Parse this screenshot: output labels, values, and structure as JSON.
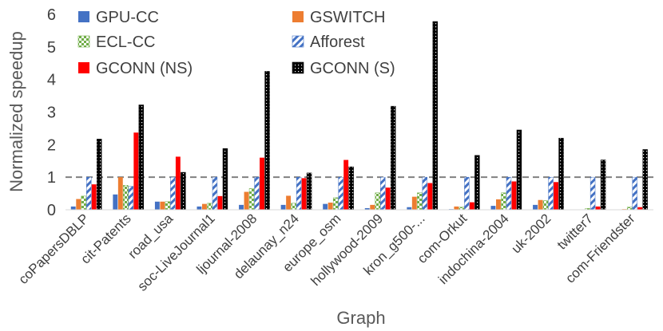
{
  "chart_data": {
    "type": "bar",
    "title": "",
    "xlabel": "Graph",
    "ylabel": "Normalized speedup",
    "ylim": [
      0,
      6
    ],
    "yticks": [
      0,
      1,
      2,
      3,
      4,
      5,
      6
    ],
    "reference_line": 1,
    "categories": [
      "coPapersDBLP",
      "cit-Patents",
      "road_usa",
      "soc-LiveJournal1",
      "ljournal-2008",
      "delaunay_n24",
      "europe_osm",
      "hollywood-2009",
      "kron_g500-...",
      "com-Orkut",
      "indochina-2004",
      "uk-2002",
      "twitter7",
      "com-Friendster"
    ],
    "series": [
      {
        "name": "GPU-CC",
        "color": "#4472C4",
        "pattern": "solid",
        "values": [
          0.1,
          0.47,
          0.25,
          0.1,
          0.15,
          0.15,
          0.18,
          0.05,
          0.08,
          0.02,
          0.12,
          0.15,
          0.0,
          0.0
        ]
      },
      {
        "name": "GSWITCH",
        "color": "#ED7D31",
        "pattern": "solid",
        "values": [
          0.33,
          1.0,
          0.25,
          0.18,
          0.55,
          0.43,
          0.22,
          0.15,
          0.4,
          0.1,
          0.32,
          0.3,
          0.01,
          0.02
        ]
      },
      {
        "name": "ECL-CC",
        "color": "#70AD47",
        "pattern": "checker",
        "values": [
          0.42,
          0.75,
          0.25,
          0.2,
          0.65,
          0.2,
          0.37,
          0.52,
          0.52,
          0.08,
          0.52,
          0.28,
          0.04,
          0.08
        ]
      },
      {
        "name": "Afforest",
        "color": "#4472C4",
        "pattern": "diagonal",
        "values": [
          1.0,
          0.72,
          1.0,
          1.0,
          1.0,
          1.0,
          1.0,
          1.0,
          1.0,
          1.0,
          1.0,
          1.0,
          1.0,
          1.0
        ]
      },
      {
        "name": "GCONN (NS)",
        "color": "#FF0000",
        "pattern": "solid",
        "values": [
          0.78,
          2.37,
          1.63,
          0.42,
          1.6,
          0.97,
          1.53,
          0.68,
          0.82,
          0.23,
          0.87,
          0.85,
          0.1,
          0.08
        ]
      },
      {
        "name": "GCONN (S)",
        "color": "#000000",
        "pattern": "dots",
        "values": [
          2.17,
          3.22,
          1.15,
          1.88,
          4.25,
          1.13,
          1.32,
          3.18,
          5.78,
          1.67,
          2.45,
          2.2,
          1.53,
          1.85
        ]
      }
    ],
    "legend": {
      "position": "top-left",
      "columns": 2
    }
  }
}
